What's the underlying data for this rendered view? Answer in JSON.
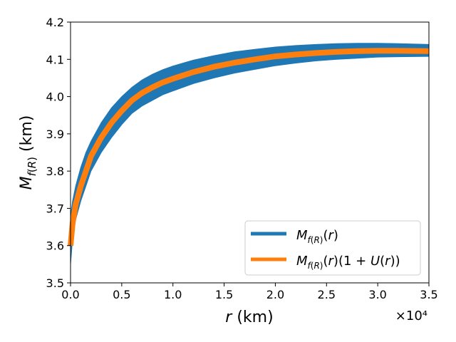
{
  "chart_data": {
    "type": "line",
    "title": "",
    "xlabel": "r (km)",
    "ylabel": "M_f(R) (km)",
    "x_offset_label": "×10⁴",
    "xlim": [
      0,
      35000
    ],
    "ylim": [
      3.5,
      4.2
    ],
    "x_ticks": [
      0,
      5000,
      10000,
      15000,
      20000,
      25000,
      30000,
      35000
    ],
    "x_tick_labels": [
      "0.0",
      "0.5",
      "1.0",
      "1.5",
      "2.0",
      "2.5",
      "3.0",
      "3.5"
    ],
    "y_ticks": [
      3.5,
      3.6,
      3.7,
      3.8,
      3.9,
      4.0,
      4.1,
      4.2
    ],
    "y_tick_labels": [
      "3.5",
      "3.6",
      "3.7",
      "3.8",
      "3.9",
      "4.0",
      "4.1",
      "4.2"
    ],
    "grid": false,
    "legend_position": "lower-right",
    "series": [
      {
        "name": "M_f(R)(r)",
        "color": "#1f77b4",
        "style": "band",
        "x": [
          0,
          200,
          500,
          1000,
          1500,
          2000,
          3000,
          4000,
          5000,
          6000,
          7000,
          8000,
          9000,
          10000,
          12000,
          14000,
          16000,
          18000,
          20000,
          22000,
          24000,
          26000,
          28000,
          30000,
          32000,
          35000
        ],
        "upper": [
          3.68,
          3.72,
          3.76,
          3.81,
          3.85,
          3.88,
          3.93,
          3.97,
          4.0,
          4.025,
          4.045,
          4.06,
          4.072,
          4.082,
          4.098,
          4.11,
          4.12,
          4.127,
          4.133,
          4.137,
          4.14,
          4.142,
          4.143,
          4.143,
          4.142,
          4.14
        ],
        "lower": [
          3.55,
          3.62,
          3.67,
          3.72,
          3.76,
          3.8,
          3.85,
          3.89,
          3.925,
          3.955,
          3.975,
          3.99,
          4.005,
          4.015,
          4.035,
          4.05,
          4.063,
          4.073,
          4.083,
          4.09,
          4.096,
          4.1,
          4.103,
          4.106,
          4.107,
          4.108
        ]
      },
      {
        "name": "M_f(R)(r)(1+U(r))",
        "color": "#ff7f0e",
        "style": "line",
        "x": [
          0,
          200,
          500,
          1000,
          1500,
          2000,
          3000,
          4000,
          5000,
          6000,
          7000,
          8000,
          9000,
          10000,
          12000,
          14000,
          16000,
          18000,
          20000,
          22000,
          24000,
          26000,
          28000,
          30000,
          32000,
          35000
        ],
        "values": [
          3.6,
          3.66,
          3.71,
          3.76,
          3.8,
          3.84,
          3.89,
          3.93,
          3.962,
          3.99,
          4.01,
          4.025,
          4.038,
          4.048,
          4.066,
          4.08,
          4.091,
          4.1,
          4.108,
          4.113,
          4.117,
          4.12,
          4.122,
          4.123,
          4.123,
          4.122
        ]
      }
    ]
  }
}
